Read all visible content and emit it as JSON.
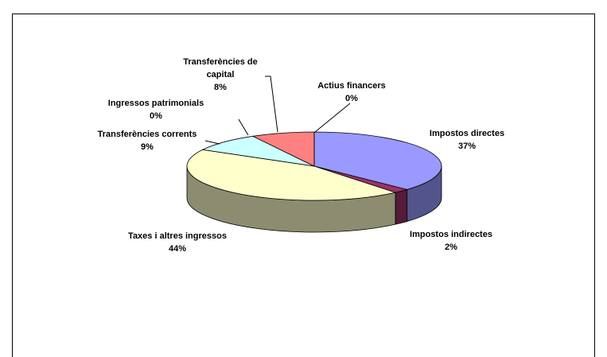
{
  "chart_data": {
    "type": "pie",
    "categories": [
      "Impostos directes",
      "Impostos indirectes",
      "Taxes i altres ingressos",
      "Transferències corrents",
      "Ingressos patrimonials",
      "Transferències de capital",
      "Actius financers"
    ],
    "values": [
      37,
      2,
      44,
      9,
      0,
      8,
      0
    ],
    "value_labels": [
      "37%",
      "2%",
      "44%",
      "9%",
      "0%",
      "8%",
      "0%"
    ],
    "colors": [
      "#9999ff",
      "#993366",
      "#ffffcc",
      "#ccffff",
      "#660066",
      "#ff8080",
      "#0066cc"
    ]
  }
}
